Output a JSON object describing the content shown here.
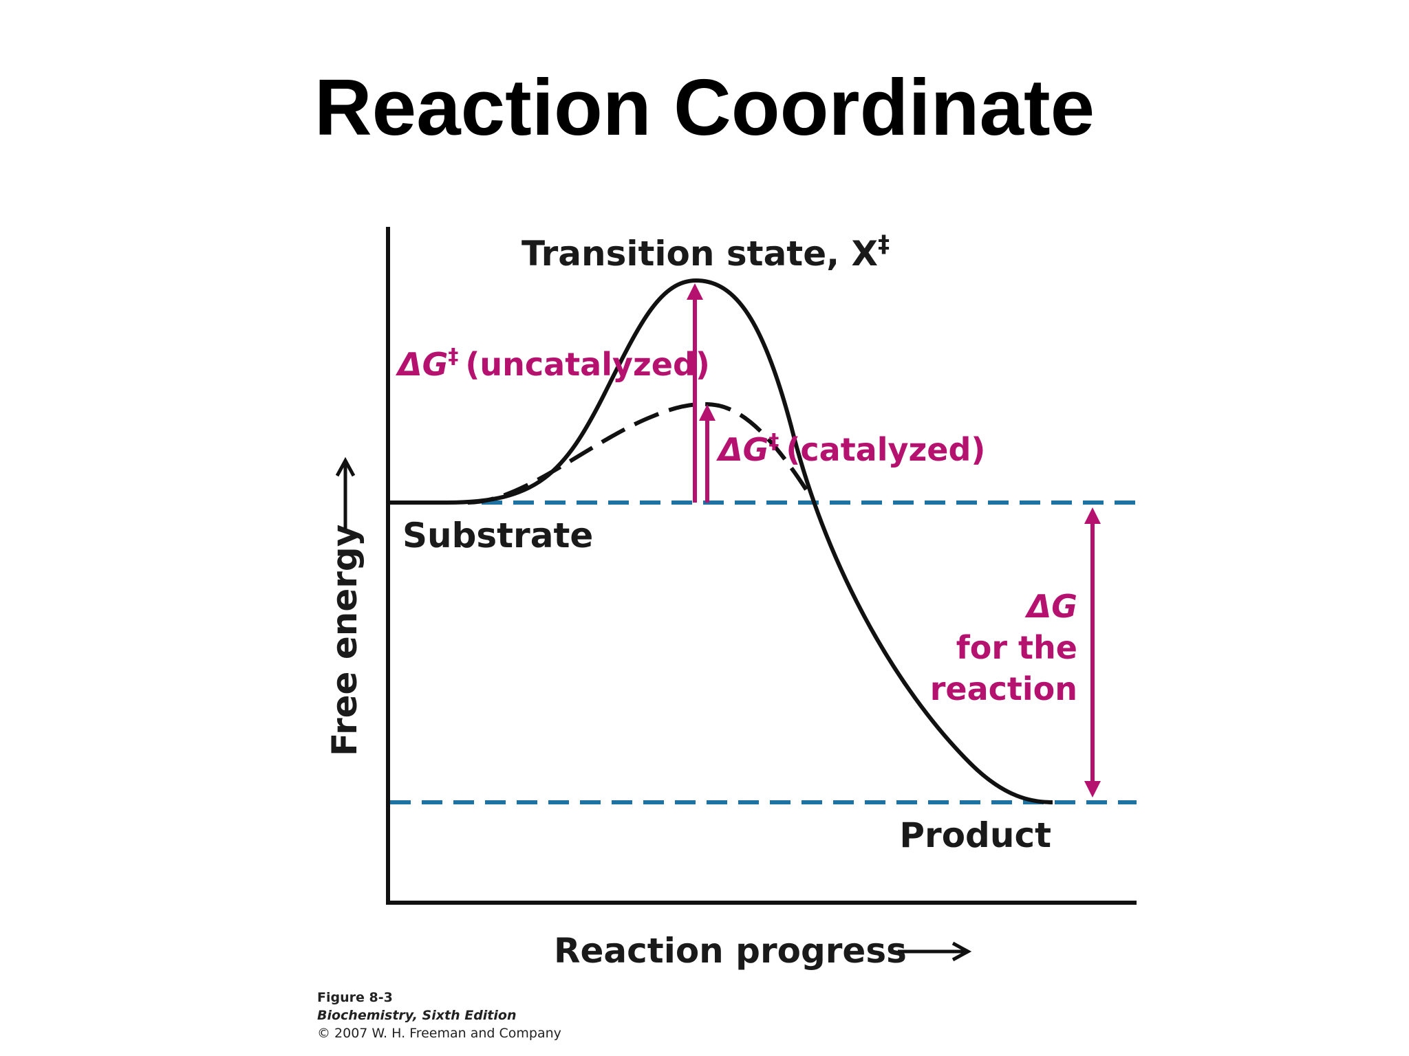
{
  "slide": {
    "title": "Reaction Coordinate"
  },
  "diagram": {
    "transition_state_prefix": "Transition state, X",
    "transition_state_sup": "‡",
    "dg_uncat_delta": "ΔG",
    "dg_uncat_sup": "‡",
    "dg_uncat_text": "(uncatalyzed)",
    "dg_cat_delta": "ΔG",
    "dg_cat_sup": "‡",
    "dg_cat_text": "(catalyzed)",
    "substrate": "Substrate",
    "product": "Product",
    "dg_reaction_line1": "ΔG",
    "dg_reaction_line2": "for the",
    "dg_reaction_line3": "reaction",
    "y_axis_label": "Free energy",
    "x_axis_label": "Reaction progress",
    "colors": {
      "curve": "#111111",
      "reference_lines": "#1f73a3",
      "annotation": "#b5126f"
    }
  },
  "caption": {
    "figure": "Figure 8-3",
    "book": "Biochemistry, Sixth Edition",
    "copyright": "© 2007 W. H. Freeman and Company"
  }
}
